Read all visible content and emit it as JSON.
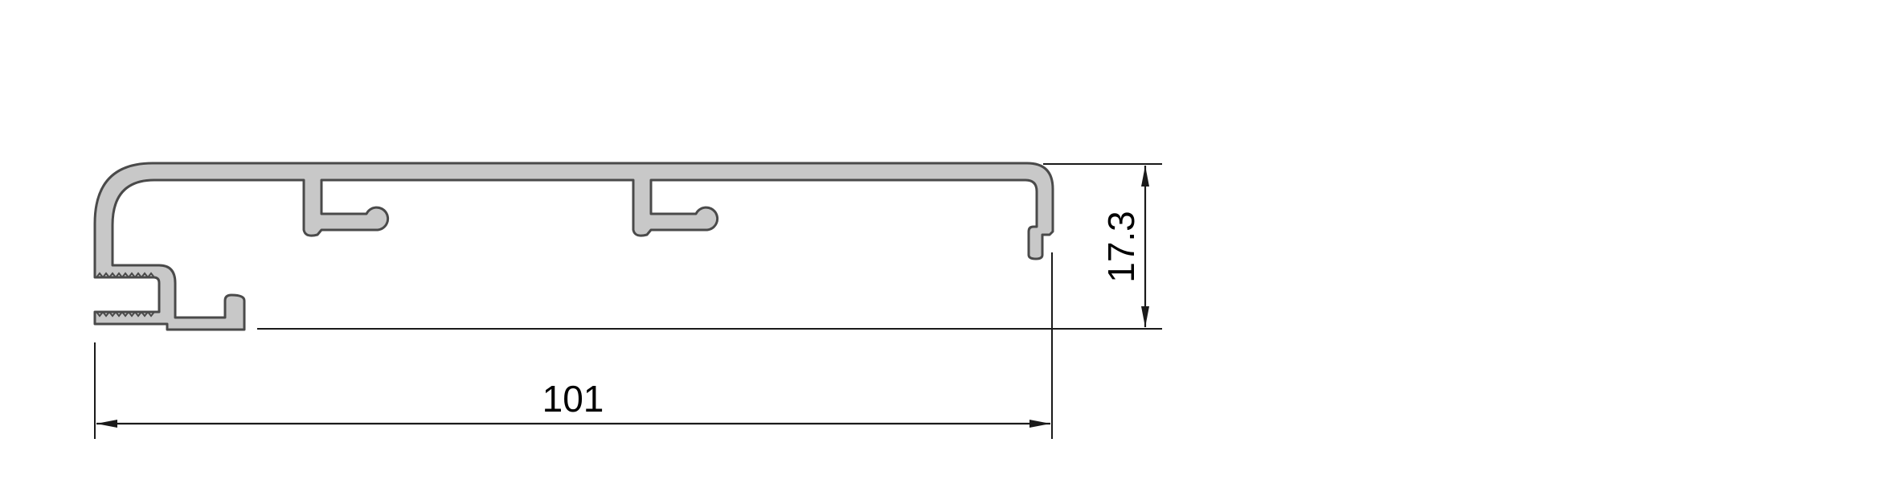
{
  "drawing": {
    "dimensions": {
      "width_label": "101",
      "height_label": "17.3"
    },
    "colors": {
      "profile_fill": "#c8c8c8",
      "profile_stroke": "#4a4a4a",
      "dimension_lines": "#1a1a1a",
      "background": "#ffffff"
    }
  }
}
